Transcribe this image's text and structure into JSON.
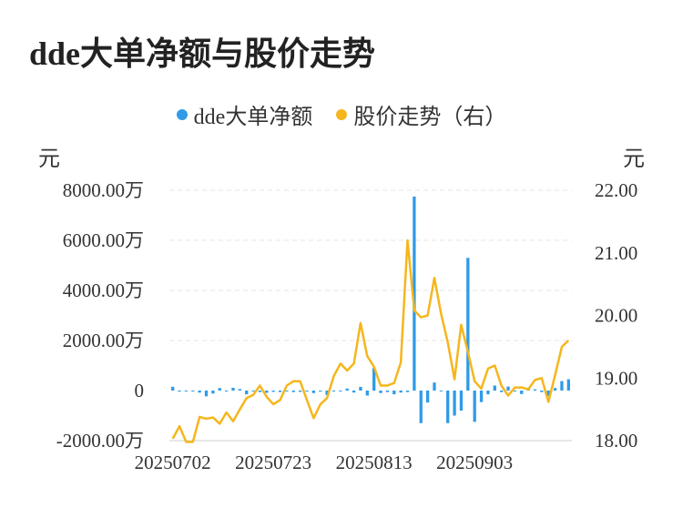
{
  "title": "dde大单净额与股价走势",
  "legend": [
    {
      "name": "dde大单净额",
      "color": "#2f9be8"
    },
    {
      "name": "股价走势（右）",
      "color": "#f5b61d"
    }
  ],
  "unit_left": "元",
  "unit_right": "元",
  "chart_data": {
    "type": "bar+line",
    "title": "dde大单净额与股价走势",
    "left_axis": {
      "unit": "元",
      "ylim": [
        -2000,
        8000
      ],
      "ticks": [
        -2000,
        0,
        2000,
        4000,
        6000,
        8000
      ],
      "tick_labels": [
        "-2000.00万",
        "0",
        "2000.00万",
        "4000.00万",
        "6000.00万",
        "8000.00万"
      ]
    },
    "right_axis": {
      "unit": "元",
      "ylim": [
        18.0,
        22.0
      ],
      "ticks": [
        18.0,
        19.0,
        20.0,
        21.0,
        22.0
      ],
      "tick_labels": [
        "18.00",
        "19.00",
        "20.00",
        "21.00",
        "22.00"
      ]
    },
    "x_tick_labels": [
      {
        "index": 0,
        "label": "20250702"
      },
      {
        "index": 15,
        "label": "20250723"
      },
      {
        "index": 30,
        "label": "20250813"
      },
      {
        "index": 45,
        "label": "20250903"
      }
    ],
    "grid": true,
    "legend_position": "top",
    "series": [
      {
        "name": "dde大单净额",
        "type": "bar",
        "axis": "left",
        "color": "#2f9be8",
        "values": [
          150,
          -40,
          -30,
          0,
          -80,
          -230,
          -120,
          100,
          0,
          110,
          60,
          -150,
          0,
          -60,
          -90,
          -50,
          -60,
          -30,
          -60,
          -50,
          -40,
          -100,
          -40,
          -180,
          0,
          -30,
          80,
          -80,
          150,
          -200,
          900,
          -100,
          -60,
          -150,
          -80,
          -60,
          7750,
          -1300,
          -480,
          320,
          -30,
          -1300,
          -1000,
          -800,
          5300,
          -1250,
          -460,
          -150,
          200,
          -60,
          160,
          0,
          -140,
          100,
          50,
          -60,
          -220,
          100,
          380,
          450
        ]
      },
      {
        "name": "股价走势（右）",
        "type": "line",
        "axis": "right",
        "color": "#f5b61d",
        "values": [
          18.03,
          18.23,
          17.98,
          17.98,
          18.38,
          18.35,
          18.37,
          18.27,
          18.45,
          18.31,
          18.5,
          18.68,
          18.73,
          18.88,
          18.7,
          18.58,
          18.65,
          18.88,
          18.95,
          18.95,
          18.65,
          18.36,
          18.58,
          18.68,
          19.03,
          19.23,
          19.12,
          19.23,
          19.88,
          19.35,
          19.18,
          18.88,
          18.88,
          18.92,
          19.25,
          21.2,
          20.08,
          19.97,
          20.0,
          20.6,
          20.03,
          19.57,
          18.98,
          19.85,
          19.42,
          18.95,
          18.83,
          19.15,
          19.2,
          18.88,
          18.72,
          18.85,
          18.85,
          18.82,
          18.97,
          19.0,
          18.62,
          19.05,
          19.5,
          19.6
        ]
      }
    ]
  }
}
